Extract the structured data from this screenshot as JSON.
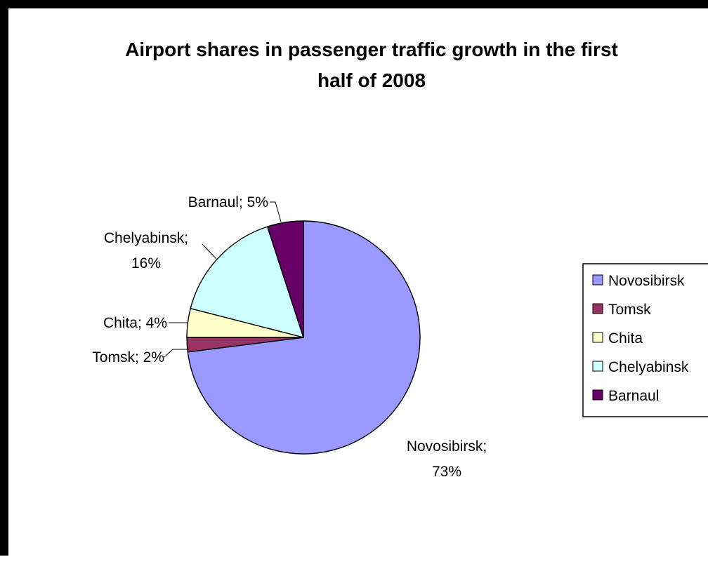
{
  "chart_data": {
    "type": "pie",
    "title_lines": [
      "Airport shares in passenger traffic growth in the first",
      "half of 2008"
    ],
    "slices": [
      {
        "name": "Novosibirsk",
        "value": 73,
        "label_lines": [
          "Novosibirsk;",
          "73%"
        ],
        "color": "#9999FF"
      },
      {
        "name": "Tomsk",
        "value": 2,
        "label_lines": [
          "Tomsk; 2%"
        ],
        "color": "#993366"
      },
      {
        "name": "Chita",
        "value": 4,
        "label_lines": [
          "Chita; 4%"
        ],
        "color": "#FFFFCC"
      },
      {
        "name": "Chelyabinsk",
        "value": 16,
        "label_lines": [
          "Chelyabinsk;",
          "16%"
        ],
        "color": "#CCFFFF"
      },
      {
        "name": "Barnaul",
        "value": 5,
        "label_lines": [
          "Barnaul; 5%"
        ],
        "color": "#660066"
      }
    ],
    "legend": {
      "position": "right",
      "entries": [
        "Novosibirsk",
        "Tomsk",
        "Chita",
        "Chelyabinsk",
        "Barnaul"
      ]
    }
  }
}
